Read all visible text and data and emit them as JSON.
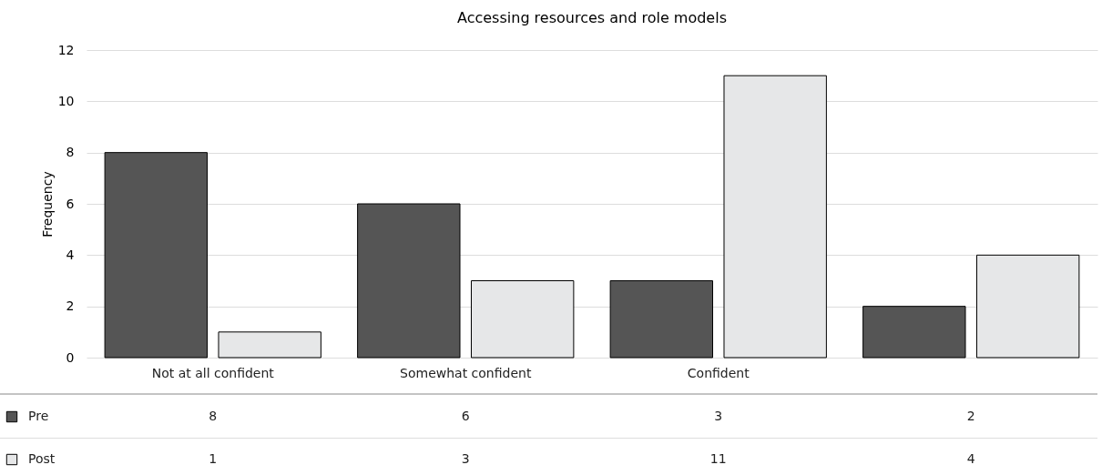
{
  "chart_data": {
    "type": "bar",
    "title": "Accessing resources and role models",
    "ylabel": "Frequency",
    "categories": [
      "Not at all confident",
      "Somewhat confident",
      "Confident",
      null
    ],
    "series": [
      {
        "name": "Pre",
        "color": "#555555",
        "values": [
          8,
          6,
          3,
          2
        ]
      },
      {
        "name": "Post",
        "color": "#e6e7e8",
        "values": [
          1,
          3,
          11,
          4
        ]
      }
    ],
    "ylim": [
      0,
      12
    ],
    "yticks": [
      0,
      2,
      4,
      6,
      8,
      10,
      12
    ],
    "grid": "y",
    "legend": "bottom left",
    "data_labels": true
  }
}
